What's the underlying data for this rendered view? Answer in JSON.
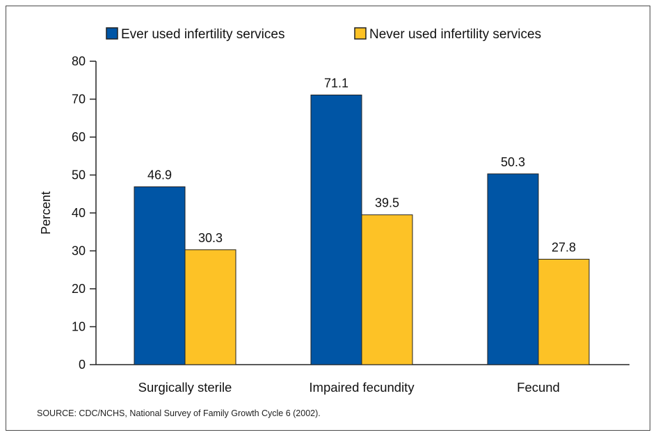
{
  "colors": {
    "ever": "#0055a5",
    "never": "#fdc226",
    "axis": "#222222",
    "text": "#111111"
  },
  "source_text": "SOURCE: CDC/NCHS, National Survey of Family Growth Cycle 6 (2002).",
  "chart_data": {
    "type": "bar",
    "title": "",
    "xlabel": "",
    "ylabel": "Percent",
    "ylim": [
      0,
      80
    ],
    "yticks": [
      0,
      10,
      20,
      30,
      40,
      50,
      60,
      70,
      80
    ],
    "grid": false,
    "legend_position": "top",
    "categories": [
      "Surgically sterile",
      "Impaired fecundity",
      "Fecund"
    ],
    "series": [
      {
        "name": "Ever used infertility services",
        "values": [
          46.9,
          71.1,
          50.3
        ],
        "labels": [
          "46.9",
          "71.1",
          "50.3"
        ]
      },
      {
        "name": "Never used infertility services",
        "values": [
          30.3,
          39.5,
          27.8
        ],
        "labels": [
          "30.3",
          "39.5",
          "27.8"
        ]
      }
    ]
  }
}
